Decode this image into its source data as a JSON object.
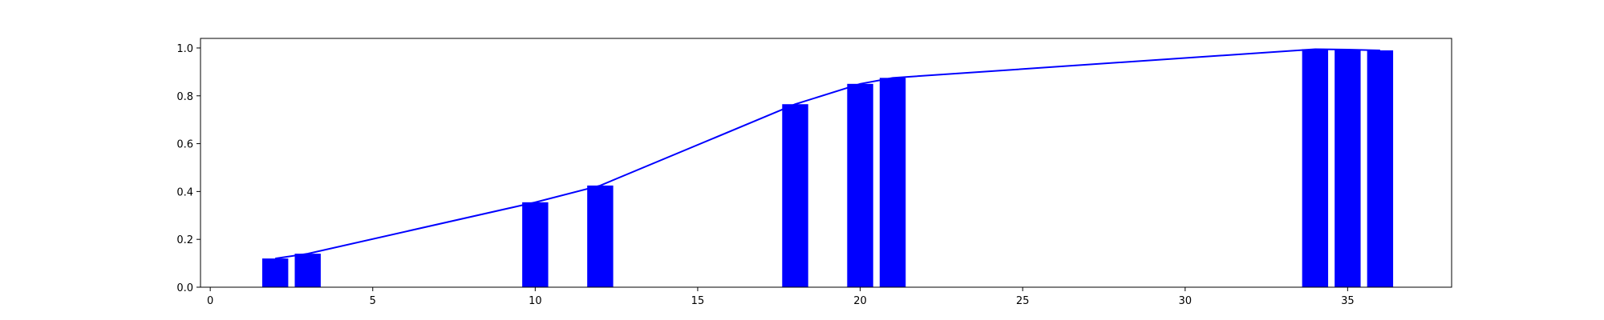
{
  "chart_data": {
    "type": "bar",
    "title": "",
    "xlabel": "",
    "ylabel": "",
    "xlim": [
      -0.3,
      38.2
    ],
    "ylim": [
      0.0,
      1.04
    ],
    "x_ticks": [
      0,
      5,
      10,
      15,
      20,
      25,
      30,
      35
    ],
    "y_ticks": [
      0.0,
      0.2,
      0.4,
      0.6,
      0.8,
      1.0
    ],
    "x_tick_labels": [
      "0",
      "5",
      "10",
      "15",
      "20",
      "25",
      "30",
      "35"
    ],
    "y_tick_labels": [
      "0.0",
      "0.2",
      "0.4",
      "0.6",
      "0.8",
      "1.0"
    ],
    "bar_width": 0.8,
    "color": "#0000ff",
    "grid": false,
    "legend": "none",
    "series": [
      {
        "type": "bar",
        "x": [
          2,
          3,
          10,
          12,
          18,
          20,
          21,
          34,
          35,
          36
        ],
        "values": [
          0.12,
          0.14,
          0.355,
          0.425,
          0.765,
          0.85,
          0.875,
          0.995,
          0.993,
          0.99
        ]
      },
      {
        "type": "line",
        "x": [
          2,
          3,
          10,
          12,
          18,
          20,
          21,
          34,
          35,
          36
        ],
        "values": [
          0.12,
          0.14,
          0.355,
          0.425,
          0.765,
          0.85,
          0.875,
          0.995,
          0.993,
          0.99
        ]
      }
    ]
  }
}
